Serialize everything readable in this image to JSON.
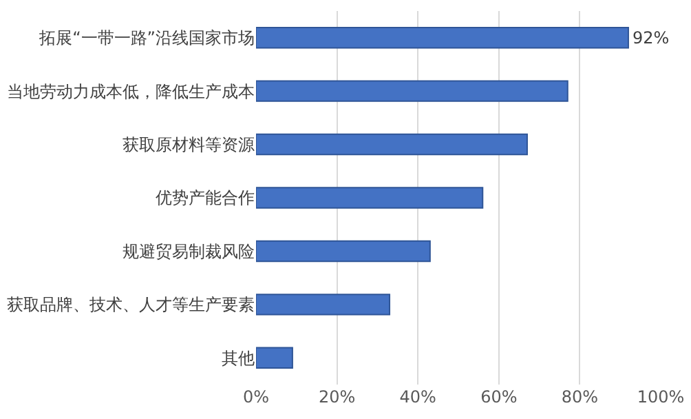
{
  "chart_data": {
    "type": "bar",
    "orientation": "horizontal",
    "categories": [
      "拓展“一带一路”沿线国家市场",
      "当地劳动力成本低，降低生产成本",
      "获取原材料等资源",
      "优势产能合作",
      "规避贸易制裁风险",
      "获取品牌、技术、人才等生产要素",
      "其他"
    ],
    "values": [
      92,
      77,
      67,
      56,
      43,
      33,
      9
    ],
    "value_labels": [
      "92%",
      null,
      null,
      null,
      null,
      null,
      null
    ],
    "color": "#4472c4",
    "xlim": [
      0,
      100
    ],
    "xticks": [
      {
        "value": 0,
        "label": "0%"
      },
      {
        "value": 20,
        "label": "20%"
      },
      {
        "value": 40,
        "label": "40%"
      },
      {
        "value": 60,
        "label": "60%"
      },
      {
        "value": 80,
        "label": "80%"
      },
      {
        "value": 100,
        "label": "100%"
      }
    ],
    "grid": "x"
  }
}
